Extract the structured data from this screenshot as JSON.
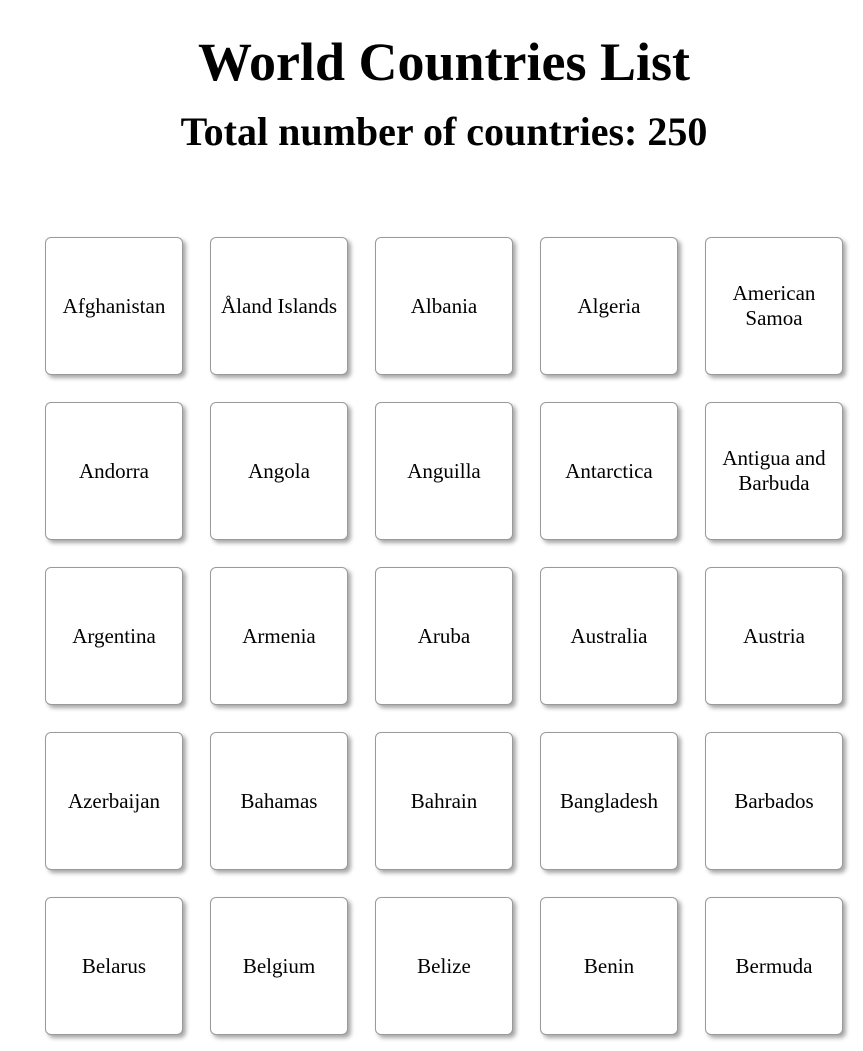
{
  "header": {
    "title": "World Countries List",
    "subtitle": "Total number of countries: 250"
  },
  "countries": [
    "Afghanistan",
    "Åland Islands",
    "Albania",
    "Algeria",
    "American Samoa",
    "Andorra",
    "Angola",
    "Anguilla",
    "Antarctica",
    "Antigua and Barbuda",
    "Argentina",
    "Armenia",
    "Aruba",
    "Australia",
    "Austria",
    "Azerbaijan",
    "Bahamas",
    "Bahrain",
    "Bangladesh",
    "Barbados",
    "Belarus",
    "Belgium",
    "Belize",
    "Benin",
    "Bermuda"
  ]
}
